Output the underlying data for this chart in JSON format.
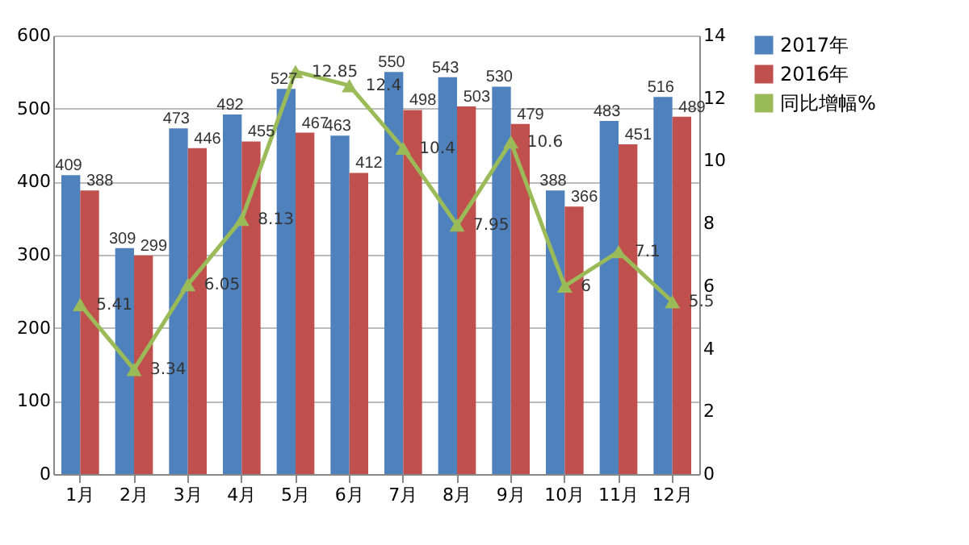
{
  "chart_data": {
    "type": "bar",
    "categories": [
      "1月",
      "2月",
      "3月",
      "4月",
      "5月",
      "6月",
      "7月",
      "8月",
      "9月",
      "10月",
      "11月",
      "12月"
    ],
    "series": [
      {
        "name": "2017年",
        "color": "#4f81bd",
        "values": [
          409,
          309,
          473,
          492,
          527,
          463,
          550,
          543,
          530,
          388,
          483,
          516
        ]
      },
      {
        "name": "2016年",
        "color": "#c0504d",
        "values": [
          388,
          299,
          446,
          455,
          467,
          412,
          498,
          503,
          479,
          366,
          451,
          489
        ]
      },
      {
        "name": "同比增幅%",
        "type": "line",
        "axis": "y2",
        "color": "#9bbb59",
        "values": [
          5.41,
          3.34,
          6.05,
          8.13,
          12.85,
          12.4,
          10.4,
          7.95,
          10.6,
          6,
          7.1,
          5.5
        ]
      }
    ],
    "ylim": [
      0,
      600
    ],
    "yticks": [
      0,
      100,
      200,
      300,
      400,
      500,
      600
    ],
    "y2lim": [
      0,
      14
    ],
    "y2ticks": [
      0,
      2,
      4,
      6,
      8,
      10,
      12,
      14
    ],
    "grid": "y",
    "legend": "right",
    "marker": "triangle",
    "data_labels": true
  }
}
